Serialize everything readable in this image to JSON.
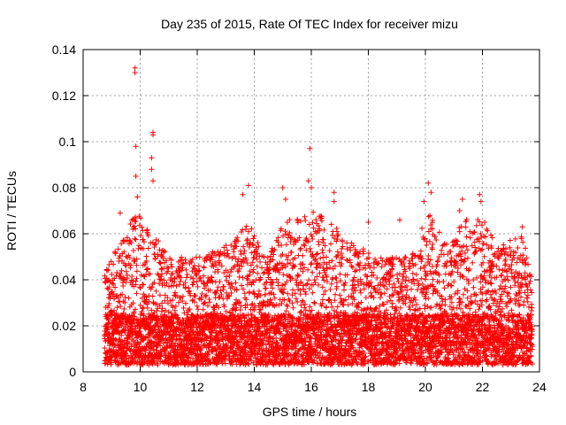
{
  "chart_data": {
    "type": "scatter",
    "title": "Day 235 of 2015, Rate Of TEC Index for receiver mizu",
    "xlabel": "GPS time / hours",
    "ylabel": "ROTI / TECUs",
    "xlim": [
      8,
      24
    ],
    "ylim": [
      0,
      0.14
    ],
    "xticks": [
      8,
      10,
      12,
      14,
      16,
      18,
      20,
      22,
      24
    ],
    "yticks": [
      0,
      0.02,
      0.04,
      0.06,
      0.08,
      0.1,
      0.12,
      0.14
    ],
    "ytick_labels": [
      "0",
      "0.02",
      "0.04",
      "0.06",
      "0.08",
      "0.1",
      "0.12",
      "0.14"
    ],
    "grid": true,
    "marker": "+",
    "color": "#ff0000",
    "x_start": 8.75,
    "x_end": 23.75,
    "sample_interval_hours": 0.0023,
    "notable_points": [
      {
        "x": 9.82,
        "y": 0.132
      },
      {
        "x": 9.82,
        "y": 0.13
      },
      {
        "x": 9.85,
        "y": 0.098
      },
      {
        "x": 9.85,
        "y": 0.085
      },
      {
        "x": 9.9,
        "y": 0.076
      },
      {
        "x": 10.45,
        "y": 0.104
      },
      {
        "x": 10.45,
        "y": 0.103
      },
      {
        "x": 10.4,
        "y": 0.093
      },
      {
        "x": 10.4,
        "y": 0.088
      },
      {
        "x": 10.45,
        "y": 0.083
      },
      {
        "x": 9.3,
        "y": 0.069
      },
      {
        "x": 13.6,
        "y": 0.077
      },
      {
        "x": 13.8,
        "y": 0.081
      },
      {
        "x": 15.0,
        "y": 0.08
      },
      {
        "x": 15.1,
        "y": 0.075
      },
      {
        "x": 15.95,
        "y": 0.097
      },
      {
        "x": 15.9,
        "y": 0.083
      },
      {
        "x": 16.0,
        "y": 0.08
      },
      {
        "x": 16.8,
        "y": 0.078
      },
      {
        "x": 16.8,
        "y": 0.074
      },
      {
        "x": 18.0,
        "y": 0.065
      },
      {
        "x": 19.1,
        "y": 0.066
      },
      {
        "x": 20.1,
        "y": 0.082
      },
      {
        "x": 20.2,
        "y": 0.078
      },
      {
        "x": 19.95,
        "y": 0.074
      },
      {
        "x": 21.3,
        "y": 0.075
      },
      {
        "x": 21.2,
        "y": 0.07
      },
      {
        "x": 21.9,
        "y": 0.077
      },
      {
        "x": 21.95,
        "y": 0.074
      },
      {
        "x": 23.4,
        "y": 0.063
      }
    ],
    "activity_envelope": [
      {
        "hour": 8.75,
        "typical_max": 0.045
      },
      {
        "hour": 9.5,
        "typical_max": 0.06
      },
      {
        "hour": 9.85,
        "typical_max": 0.07
      },
      {
        "hour": 10.5,
        "typical_max": 0.06
      },
      {
        "hour": 11.0,
        "typical_max": 0.05
      },
      {
        "hour": 12.0,
        "typical_max": 0.05
      },
      {
        "hour": 13.0,
        "typical_max": 0.055
      },
      {
        "hour": 13.8,
        "typical_max": 0.065
      },
      {
        "hour": 14.5,
        "typical_max": 0.05
      },
      {
        "hour": 15.0,
        "typical_max": 0.065
      },
      {
        "hour": 16.0,
        "typical_max": 0.07
      },
      {
        "hour": 16.8,
        "typical_max": 0.065
      },
      {
        "hour": 17.5,
        "typical_max": 0.055
      },
      {
        "hour": 18.5,
        "typical_max": 0.05
      },
      {
        "hour": 19.5,
        "typical_max": 0.05
      },
      {
        "hour": 20.1,
        "typical_max": 0.07
      },
      {
        "hour": 20.8,
        "typical_max": 0.055
      },
      {
        "hour": 21.3,
        "typical_max": 0.065
      },
      {
        "hour": 21.9,
        "typical_max": 0.07
      },
      {
        "hour": 22.5,
        "typical_max": 0.055
      },
      {
        "hour": 23.4,
        "typical_max": 0.06
      },
      {
        "hour": 23.75,
        "typical_max": 0.04
      }
    ],
    "baseline_range": [
      0.003,
      0.025
    ]
  }
}
